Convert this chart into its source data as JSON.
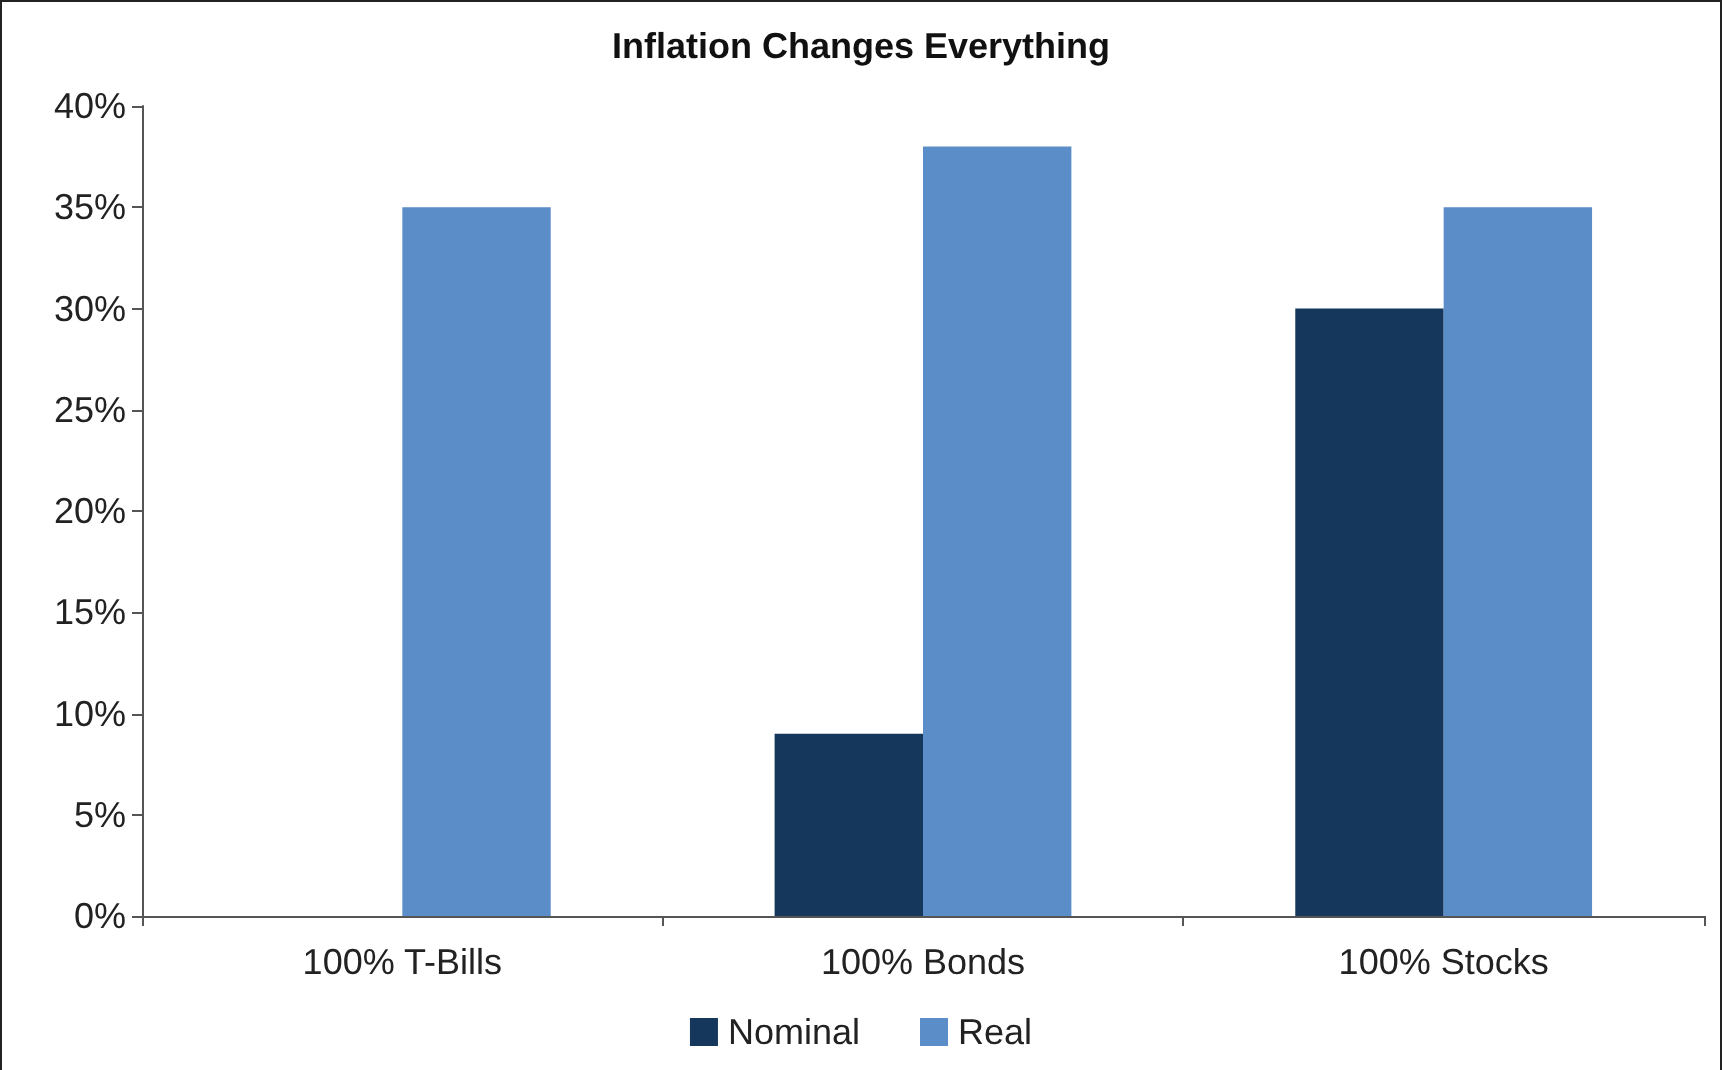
{
  "chart_data": {
    "type": "bar",
    "title": "Inflation Changes Everything",
    "categories": [
      "100% T-Bills",
      "100% Bonds",
      "100% Stocks"
    ],
    "series": [
      {
        "name": "Nominal",
        "color": "#15375b",
        "values": [
          0,
          9,
          30
        ]
      },
      {
        "name": "Real",
        "color": "#5b8dc9",
        "values": [
          35,
          38,
          35
        ]
      }
    ],
    "ylim": [
      0,
      40
    ],
    "yticks": [
      {
        "value": 0,
        "label": "0%"
      },
      {
        "value": 5,
        "label": "5%"
      },
      {
        "value": 10,
        "label": "10%"
      },
      {
        "value": 15,
        "label": "15%"
      },
      {
        "value": 20,
        "label": "20%"
      },
      {
        "value": 25,
        "label": "25%"
      },
      {
        "value": 30,
        "label": "30%"
      },
      {
        "value": 35,
        "label": "35%"
      },
      {
        "value": 40,
        "label": "40%"
      }
    ],
    "grid": false,
    "legend": "bottom"
  }
}
